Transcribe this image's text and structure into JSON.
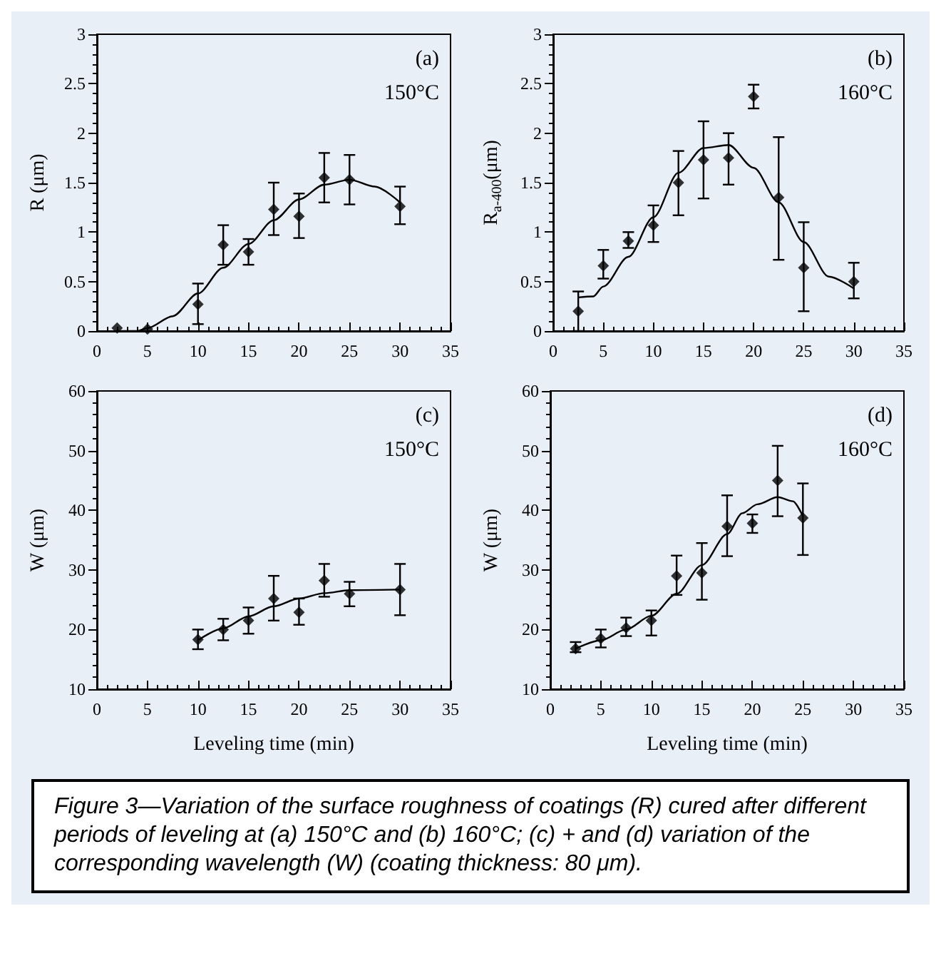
{
  "chart_data": [
    {
      "type": "scatter",
      "ylabel": "R (μm)",
      "annotations": [
        "(a)",
        "150°C",
        "Figure 3—Variation of the surface roughness of coatings (R) cured after different periods of leveling at (a) 150°C and (b) 160°C; (c) + and (d) variation of the corresponding wavelength (W) (coating thickness: 80 μm)."
      ],
      "xlim": [
        0,
        35
      ],
      "xticks": [
        0,
        5,
        10,
        15,
        20,
        25,
        30,
        35
      ],
      "ylim": [
        0,
        3
      ],
      "yticks": [
        0,
        0.5,
        1,
        1.5,
        2,
        2.5,
        3
      ],
      "marker": "diamond",
      "line_style": "solid",
      "series": [
        {
          "color": "#000000",
          "x": [
            2,
            5,
            10,
            12.5,
            15,
            17.5,
            20,
            22.5,
            25,
            30
          ],
          "values": [
            0.03,
            0.02,
            0.27,
            0.87,
            0.8,
            1.23,
            1.16,
            1.55,
            1.53,
            1.26
          ],
          "errors": [
            null,
            null,
            [
              0.07,
              0.48
            ],
            [
              0.67,
              1.07
            ],
            [
              0.67,
              0.93
            ],
            [
              0.97,
              1.5
            ],
            [
              0.94,
              1.39
            ],
            [
              1.3,
              1.8
            ],
            [
              1.28,
              1.78
            ],
            [
              1.08,
              1.46
            ]
          ]
        },
        {
          "type": "line",
          "color": "#000000",
          "marker": "none",
          "x": [
            2,
            4,
            5,
            7.5,
            10,
            12.5,
            15,
            17.5,
            20,
            22.5,
            25,
            27.5,
            30
          ],
          "values": [
            0,
            0,
            0.03,
            0.15,
            0.38,
            0.64,
            0.88,
            1.12,
            1.33,
            1.48,
            1.53,
            1.46,
            1.3
          ]
        }
      ]
    },
    {
      "type": "scatter",
      "ylabel": "R$_{a-400}$(μm)",
      "annotations": [
        "(b)",
        "160°C"
      ],
      "xlim": [
        0,
        35
      ],
      "xticks": [
        0,
        5,
        10,
        15,
        20,
        25,
        30,
        35
      ],
      "ylim": [
        0,
        3
      ],
      "yticks": [
        0,
        0.5,
        1,
        1.5,
        2,
        2.5,
        3
      ],
      "marker": "diamond",
      "line_style": "solid",
      "series": [
        {
          "color": "#000000",
          "x": [
            2.5,
            5,
            7.5,
            10,
            12.5,
            15,
            17.5,
            20,
            22.5,
            25,
            30
          ],
          "values": [
            0.2,
            0.66,
            0.91,
            1.07,
            1.5,
            1.73,
            1.75,
            2.37,
            1.35,
            0.64,
            0.5
          ],
          "errors": [
            [
              0,
              0.4
            ],
            [
              0.53,
              0.82
            ],
            [
              0.84,
              1.0
            ],
            [
              0.9,
              1.27
            ],
            [
              1.17,
              1.82
            ],
            [
              1.34,
              2.12
            ],
            [
              1.48,
              2.0
            ],
            [
              2.25,
              2.49
            ],
            [
              0.72,
              1.96
            ],
            [
              0.2,
              1.1
            ],
            [
              0.33,
              0.69
            ]
          ]
        },
        {
          "type": "line",
          "color": "#000000",
          "marker": "none",
          "x": [
            2.5,
            4,
            5,
            7.5,
            10,
            12.5,
            15,
            17.5,
            20,
            22.5,
            25,
            27.5,
            30
          ],
          "values": [
            0.34,
            0.35,
            0.45,
            0.75,
            1.15,
            1.6,
            1.85,
            1.88,
            1.65,
            1.3,
            0.9,
            0.55,
            0.43
          ]
        }
      ]
    },
    {
      "type": "scatter",
      "xlabel": "Leveling time (min)",
      "ylabel": "W (μm)",
      "annotations": [
        "(c)",
        "150°C"
      ],
      "xlim": [
        0,
        35
      ],
      "xticks": [
        0,
        5,
        10,
        15,
        20,
        25,
        30,
        35
      ],
      "ylim": [
        10,
        60
      ],
      "yticks": [
        10,
        20,
        30,
        40,
        50,
        60
      ],
      "marker": "diamond",
      "line_style": "solid",
      "series": [
        {
          "color": "#000000",
          "x": [
            10,
            12.5,
            15,
            17.5,
            20,
            22.5,
            25,
            30
          ],
          "values": [
            18.3,
            20,
            21.5,
            25.2,
            22.9,
            28.2,
            26,
            26.7
          ],
          "errors": [
            [
              16.7,
              20
            ],
            [
              18.2,
              21.8
            ],
            [
              19.3,
              23.7
            ],
            [
              21.5,
              29
            ],
            [
              20.8,
              25.2
            ],
            [
              25.5,
              31
            ],
            [
              23.9,
              28
            ],
            [
              22.4,
              31
            ]
          ]
        },
        {
          "type": "line",
          "color": "#000000",
          "marker": "none",
          "x": [
            10,
            12.5,
            15,
            17.5,
            20,
            22.5,
            25,
            30
          ],
          "values": [
            18.2,
            20.2,
            22.2,
            23.9,
            25.2,
            26.1,
            26.6,
            26.7
          ]
        }
      ]
    },
    {
      "type": "scatter",
      "xlabel": "Leveling time (min)",
      "ylabel": "W (μm)",
      "annotations": [
        "(d)",
        "160°C"
      ],
      "xlim": [
        0,
        35
      ],
      "xticks": [
        0,
        5,
        10,
        15,
        20,
        25,
        30,
        35
      ],
      "ylim": [
        10,
        60
      ],
      "yticks": [
        10,
        20,
        30,
        40,
        50,
        60
      ],
      "marker": "diamond",
      "line_style": "solid",
      "series": [
        {
          "color": "#000000",
          "x": [
            2.5,
            5,
            7.5,
            10,
            12.5,
            15,
            17.5,
            20,
            22.5,
            25
          ],
          "values": [
            16.8,
            18.5,
            20.3,
            21.5,
            29,
            29.5,
            37.3,
            37.8,
            45,
            38.7
          ],
          "errors": [
            [
              16.2,
              17.9
            ],
            [
              17,
              20
            ],
            [
              18.9,
              22
            ],
            [
              19,
              23.2
            ],
            [
              25.8,
              32.4
            ],
            [
              25,
              34.5
            ],
            [
              32.3,
              42.5
            ],
            [
              36.2,
              39.3
            ],
            [
              39,
              50.8
            ],
            [
              32.5,
              44.5
            ]
          ]
        },
        {
          "type": "line",
          "color": "#000000",
          "marker": "none",
          "x": [
            2.5,
            5,
            7.5,
            10,
            12.5,
            15,
            17.5,
            19,
            20.5,
            22.5,
            24,
            25
          ],
          "values": [
            16.8,
            18.2,
            20,
            22.3,
            26,
            30.8,
            36,
            39.5,
            41,
            42.2,
            41.5,
            39
          ]
        }
      ]
    }
  ]
}
